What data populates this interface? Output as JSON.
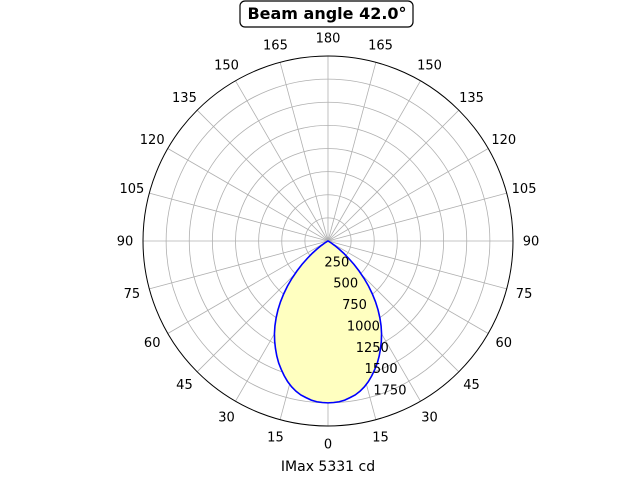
{
  "chart_data": {
    "type": "polar-line",
    "title": "Beam angle 42.0°",
    "xlabel": "IMax 5331 cd",
    "angle_ticks": [
      {
        "angle": 0,
        "label": "180"
      },
      {
        "angle": 15,
        "label": "165"
      },
      {
        "angle": 30,
        "label": "150"
      },
      {
        "angle": 45,
        "label": "135"
      },
      {
        "angle": 60,
        "label": "120"
      },
      {
        "angle": 75,
        "label": "105"
      },
      {
        "angle": 90,
        "label": "90"
      },
      {
        "angle": 105,
        "label": "75"
      },
      {
        "angle": 120,
        "label": "60"
      },
      {
        "angle": 135,
        "label": "45"
      },
      {
        "angle": 150,
        "label": "30"
      },
      {
        "angle": 165,
        "label": "15"
      },
      {
        "angle": 180,
        "label": "0"
      },
      {
        "angle": 195,
        "label": "15"
      },
      {
        "angle": 210,
        "label": "30"
      },
      {
        "angle": 225,
        "label": "45"
      },
      {
        "angle": 240,
        "label": "60"
      },
      {
        "angle": 255,
        "label": "75"
      },
      {
        "angle": 270,
        "label": "90"
      },
      {
        "angle": 285,
        "label": "105"
      },
      {
        "angle": 300,
        "label": "120"
      },
      {
        "angle": 315,
        "label": "135"
      },
      {
        "angle": 330,
        "label": "150"
      },
      {
        "angle": 345,
        "label": "165"
      }
    ],
    "radial_ticks": [
      250,
      500,
      750,
      1000,
      1250,
      1500,
      1750
    ],
    "r_max": 2000,
    "grid": true,
    "series": [
      {
        "color": "#0000ff",
        "fill": "#ffffc0",
        "angles_deg": [
          0,
          2,
          4,
          6,
          8,
          10,
          12,
          14,
          16,
          18,
          20,
          22,
          24,
          26,
          28,
          30,
          32,
          34,
          36,
          38,
          40,
          42,
          44,
          46,
          48,
          50,
          52,
          54,
          56,
          58,
          60,
          62,
          64,
          66,
          68,
          70,
          72,
          74,
          76,
          78,
          80,
          82,
          84,
          86,
          88,
          90
        ],
        "values": [
          1750,
          1747,
          1742,
          1730,
          1710,
          1690,
          1661,
          1625,
          1582,
          1532,
          1478,
          1423,
          1361,
          1295,
          1228,
          1158,
          1083,
          1003,
          921,
          834,
          744,
          653,
          560,
          467,
          378,
          290,
          215,
          145,
          88,
          48,
          22,
          8,
          2,
          0,
          0,
          0,
          0,
          0,
          0,
          0,
          0,
          0,
          0,
          0,
          0,
          0
        ]
      }
    ]
  }
}
